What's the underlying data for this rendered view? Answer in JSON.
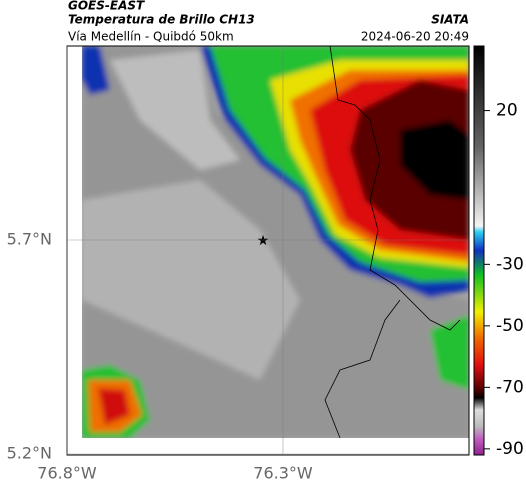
{
  "header": {
    "satellite": "GOES-EAST",
    "product": "Temperatura de Brillo CH13",
    "source": "SIATA",
    "route": "Vía Medellín - Quibdó 50km",
    "timestamp": "2024-06-20 20:49"
  },
  "map": {
    "lat_ticks": [
      {
        "value": 5.7,
        "label": "5.7°N"
      },
      {
        "value": 5.2,
        "label": "5.2°N"
      }
    ],
    "lon_ticks": [
      {
        "value": -76.8,
        "label": "76.8°W"
      },
      {
        "value": -76.3,
        "label": "76.3°W"
      }
    ]
  },
  "colorbar": {
    "lim": [
      -92,
      41
    ],
    "ticks": [
      20,
      -30,
      -50,
      -70,
      -90
    ]
  }
}
